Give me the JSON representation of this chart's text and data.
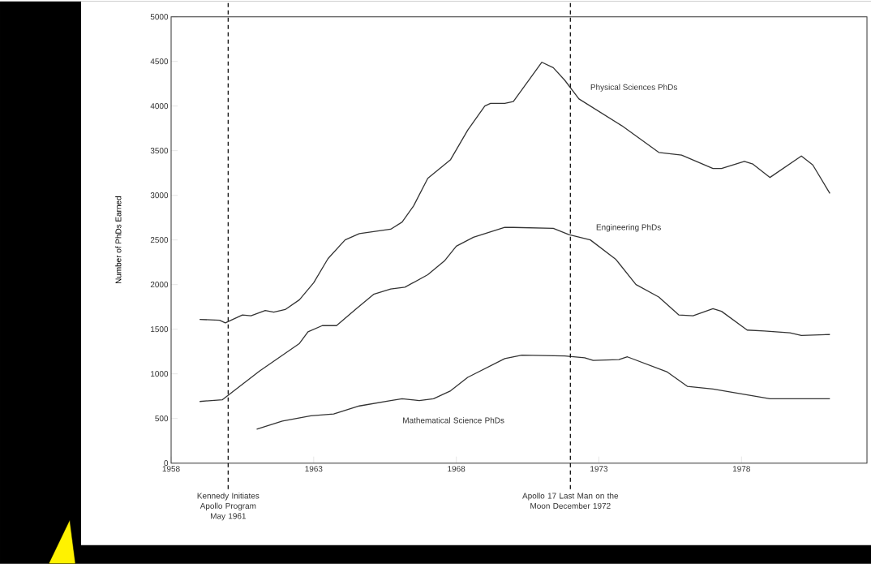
{
  "chart_data": {
    "type": "line",
    "ylabel": "Number of PhDs Earned",
    "xlim": [
      1958,
      1982.4
    ],
    "ylim": [
      0,
      5000
    ],
    "xticks": [
      1958,
      1963,
      1968,
      1973,
      1978
    ],
    "yticks": [
      0,
      500,
      1000,
      1500,
      2000,
      2500,
      3000,
      3500,
      4000,
      4500,
      5000
    ],
    "grid": false,
    "legend": false,
    "marker": "none",
    "line_style": "solid",
    "series": [
      {
        "name": "Physical Sciences PhDs",
        "color": "#333333",
        "x": [
          1959.0,
          1959.7,
          1959.9,
          1960.5,
          1960.8,
          1961.3,
          1961.6,
          1962.0,
          1962.5,
          1963.0,
          1963.5,
          1964.1,
          1964.6,
          1965.7,
          1966.1,
          1966.5,
          1967.0,
          1967.8,
          1968.4,
          1969.0,
          1969.2,
          1969.7,
          1970.0,
          1971.0,
          1971.4,
          1971.8,
          1972.3,
          1973.8,
          1975.1,
          1975.9,
          1977.0,
          1977.3,
          1978.1,
          1978.4,
          1979.0,
          1980.1,
          1980.5,
          1981.1
        ],
        "values": [
          1610,
          1600,
          1570,
          1660,
          1650,
          1710,
          1690,
          1720,
          1830,
          2020,
          2290,
          2500,
          2570,
          2620,
          2700,
          2880,
          3190,
          3400,
          3730,
          4000,
          4030,
          4030,
          4050,
          4490,
          4430,
          4290,
          4080,
          3780,
          3480,
          3450,
          3300,
          3300,
          3380,
          3350,
          3200,
          3440,
          3340,
          3020
        ]
      },
      {
        "name": "Engineering PhDs",
        "color": "#333333",
        "x": [
          1959.0,
          1959.8,
          1961.1,
          1962.5,
          1962.8,
          1963.3,
          1963.8,
          1964.5,
          1965.1,
          1965.7,
          1966.2,
          1967.0,
          1967.6,
          1968.0,
          1968.6,
          1969.7,
          1970.0,
          1971.4,
          1971.95,
          1972.7,
          1973.6,
          1974.3,
          1975.1,
          1975.8,
          1976.3,
          1977.0,
          1977.3,
          1978.2,
          1978.8,
          1979.7,
          1980.1,
          1981.1
        ],
        "values": [
          690,
          710,
          1030,
          1340,
          1470,
          1540,
          1540,
          1730,
          1890,
          1950,
          1970,
          2110,
          2270,
          2430,
          2530,
          2640,
          2640,
          2630,
          2560,
          2500,
          2280,
          2000,
          1860,
          1660,
          1650,
          1730,
          1700,
          1490,
          1480,
          1460,
          1430,
          1440
        ]
      },
      {
        "name": "Mathematical Science PhDs",
        "color": "#333333",
        "x": [
          1961.0,
          1961.9,
          1962.9,
          1963.7,
          1964.6,
          1965.7,
          1966.1,
          1966.7,
          1967.2,
          1967.8,
          1968.4,
          1969.7,
          1970.3,
          1971.8,
          1972.5,
          1972.8,
          1973.7,
          1974.0,
          1975.4,
          1976.1,
          1977.0,
          1979.0,
          1981.1
        ],
        "values": [
          380,
          470,
          530,
          550,
          640,
          700,
          720,
          700,
          720,
          810,
          960,
          1170,
          1210,
          1200,
          1180,
          1150,
          1160,
          1190,
          1020,
          860,
          830,
          720,
          720
        ]
      }
    ],
    "ref_lines": [
      {
        "axis": "x",
        "value": 1960,
        "label": "Kennedy Initiates Apollo Program May 1961",
        "line_style": "dashed",
        "color": "#111111"
      },
      {
        "axis": "x",
        "value": 1972,
        "label": "Apollo 17 Last Man on the Moon December 1972",
        "line_style": "dashed",
        "color": "#111111"
      }
    ]
  }
}
